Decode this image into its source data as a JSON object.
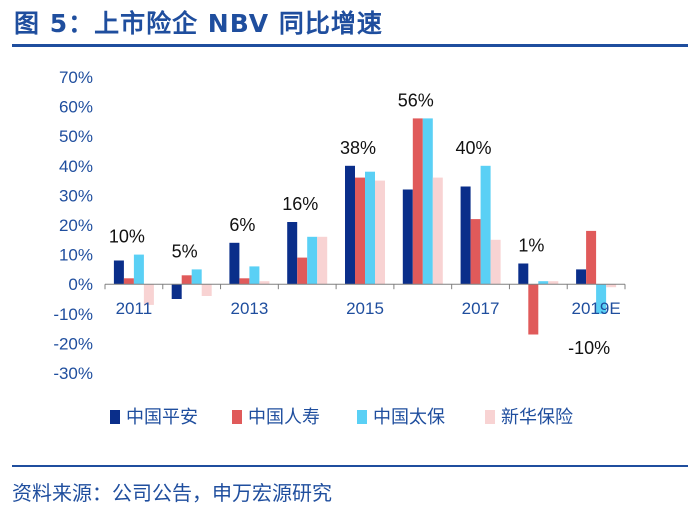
{
  "header": {
    "title": "图 5：上市险企 NBV 同比增速"
  },
  "footer": {
    "source": "资料来源：公司公告，申万宏源研究"
  },
  "chart_data": {
    "type": "bar",
    "title": "图 5：上市险企 NBV 同比增速",
    "categories": [
      "2011",
      "2012",
      "2013",
      "2014",
      "2015",
      "2016",
      "2017",
      "2018",
      "2019E"
    ],
    "category_tick_labels": [
      "2011",
      "",
      "2013",
      "",
      "2015",
      "",
      "2017",
      "",
      "2019E"
    ],
    "series": [
      {
        "name": "中国平安",
        "color": "#0a2e8a",
        "values": [
          8,
          -5,
          14,
          21,
          40,
          32,
          33,
          7,
          5
        ]
      },
      {
        "name": "中国人寿",
        "color": "#e05a5a",
        "values": [
          2,
          3,
          2,
          9,
          36,
          56,
          22,
          -17,
          18
        ]
      },
      {
        "name": "中国太保",
        "color": "#5ad0f5",
        "values": [
          10,
          5,
          6,
          16,
          38,
          56,
          40,
          1,
          -10
        ]
      },
      {
        "name": "新华保险",
        "color": "#f8d3d3",
        "values": [
          -7,
          -4,
          1,
          16,
          35,
          36,
          15,
          1,
          -1
        ]
      }
    ],
    "data_labels": [
      "10%",
      "5%",
      "6%",
      "16%",
      "38%",
      "56%",
      "40%",
      "1%",
      "-10%"
    ],
    "ylim": [
      -30,
      70
    ],
    "yticks": [
      70,
      60,
      50,
      40,
      30,
      20,
      10,
      0,
      -10,
      -20,
      -30
    ],
    "ytick_labels": [
      "70%",
      "60%",
      "50%",
      "40%",
      "30%",
      "20%",
      "10%",
      "0%",
      "-10%",
      "-20%",
      "-30%"
    ],
    "xlabel": "",
    "ylabel": "",
    "legend_position": "bottom",
    "grid": false
  }
}
